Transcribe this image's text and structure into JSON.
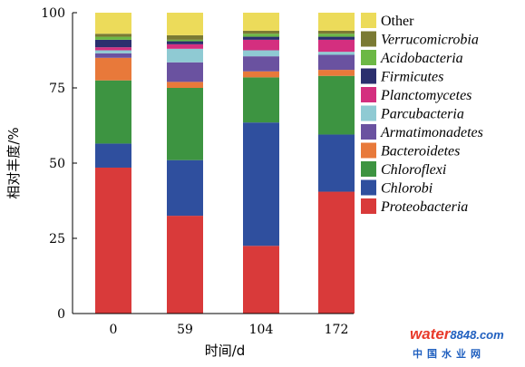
{
  "chart_data": {
    "type": "bar",
    "stacked": true,
    "title": "",
    "xlabel": "时间/d",
    "ylabel": "相对丰度/%",
    "ylim": [
      0,
      100
    ],
    "yticks": [
      0,
      25,
      50,
      75,
      100
    ],
    "categories": [
      "0",
      "59",
      "104",
      "172"
    ],
    "legend_position": "right",
    "grid": false,
    "series": [
      {
        "name": "Proteobacteria",
        "italic": true,
        "color": "#d93a3a",
        "values": [
          48.5,
          32.5,
          22.5,
          40.5
        ]
      },
      {
        "name": "Chlorobi",
        "italic": true,
        "color": "#2f4f9e",
        "values": [
          8.0,
          18.5,
          41.0,
          19.0
        ]
      },
      {
        "name": "Chloroflexi",
        "italic": true,
        "color": "#3d9441",
        "values": [
          21.0,
          24.0,
          15.0,
          19.5
        ]
      },
      {
        "name": "Bacteroidetes",
        "italic": true,
        "color": "#e8793a",
        "values": [
          7.5,
          2.0,
          2.0,
          2.0
        ]
      },
      {
        "name": "Armatimonadetes",
        "italic": true,
        "color": "#6a52a0",
        "values": [
          1.5,
          6.5,
          5.0,
          5.0
        ]
      },
      {
        "name": "Parcubacteria",
        "italic": true,
        "color": "#8fcad3",
        "values": [
          1.0,
          4.5,
          2.0,
          1.0
        ]
      },
      {
        "name": "Planctomycetes",
        "italic": true,
        "color": "#d42f7f",
        "values": [
          1.0,
          1.5,
          3.5,
          4.0
        ]
      },
      {
        "name": "Firmicutes",
        "italic": true,
        "color": "#2b2f6e",
        "values": [
          2.5,
          1.0,
          1.0,
          1.0
        ]
      },
      {
        "name": "Acidobacteria",
        "italic": true,
        "color": "#6cb845",
        "values": [
          1.0,
          0.5,
          1.0,
          1.0
        ]
      },
      {
        "name": "Verrucomicrobia",
        "italic": true,
        "color": "#7a7a33",
        "values": [
          1.0,
          1.5,
          1.0,
          1.0
        ]
      },
      {
        "name": "Other",
        "italic": false,
        "color": "#ecdb5a",
        "values": [
          7.0,
          7.5,
          6.0,
          6.0
        ]
      }
    ]
  },
  "watermark": {
    "main": "water8848",
    "domain": ".com",
    "sub": "中国水业网",
    "colors": {
      "water": "#e83a2a",
      "digits": "#1f5fbf",
      "sub": "#1f5fbf"
    }
  }
}
